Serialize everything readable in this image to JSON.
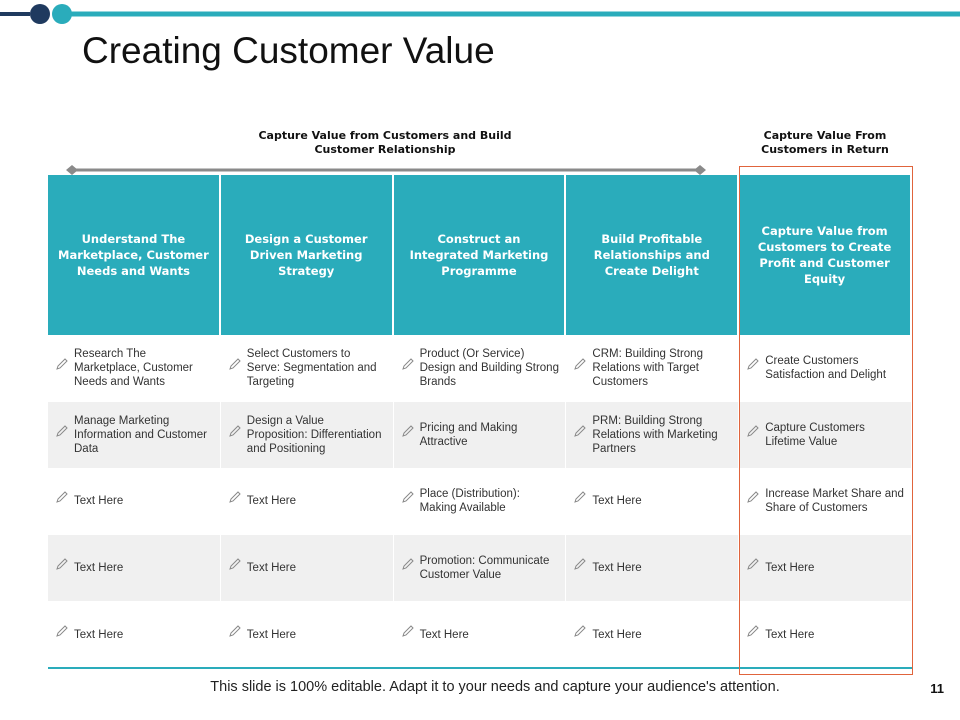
{
  "header": {
    "title": "Creating Customer Value",
    "left_caption": "Capture Value from Customers and Build Customer Relationship",
    "right_caption": "Capture Value From Customers in Return"
  },
  "table": {
    "columns": [
      "Understand The Marketplace, Customer Needs and Wants",
      "Design a Customer Driven Marketing Strategy",
      "Construct an Integrated Marketing Programme",
      "Build Profitable Relationships and Create Delight",
      "Capture Value from Customers to Create Profit and Customer Equity"
    ],
    "rows": [
      [
        "Research The Marketplace, Customer Needs and Wants",
        "Select Customers to Serve: Segmentation and Targeting",
        "Product (Or Service) Design and Building Strong Brands",
        "CRM: Building Strong Relations with Target Customers",
        "Create Customers Satisfaction and Delight"
      ],
      [
        "Manage Marketing Information and Customer Data",
        "Design a Value Proposition: Differentiation and Positioning",
        "Pricing and Making Attractive",
        "PRM: Building Strong Relations with Marketing Partners",
        "Capture Customers Lifetime Value"
      ],
      [
        "Text Here",
        "Text Here",
        "Place (Distribution): Making Available",
        "Text Here",
        "Increase Market Share and Share of Customers"
      ],
      [
        "Text Here",
        "Text Here",
        "Promotion: Communicate Customer Value",
        "Text Here",
        "Text Here"
      ],
      [
        "Text Here",
        "Text Here",
        "Text Here",
        "Text Here",
        "Text Here"
      ]
    ]
  },
  "footer": {
    "note": "This slide is 100% editable. Adapt it to your needs and capture your audience's attention.",
    "page_number": "11"
  }
}
